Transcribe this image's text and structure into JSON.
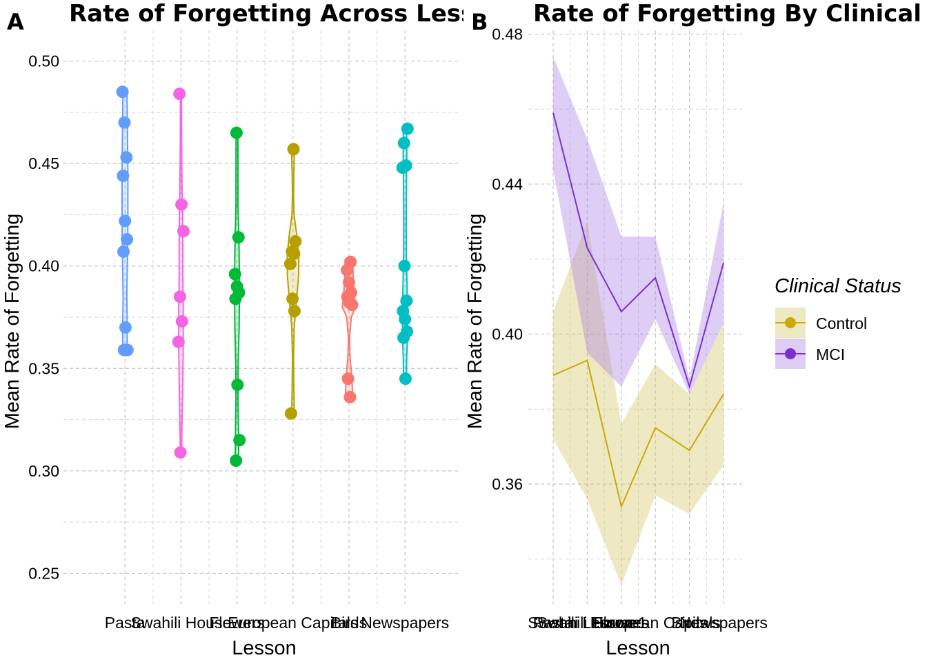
{
  "colors": {
    "Pasta": "#619CFF",
    "Swahili House": "#F564E3",
    "Flowers": "#00BA38",
    "European Capitals": "#B79F00",
    "Birds": "#F8766D",
    "Newspapers": "#00BFC4",
    "Control": "#C9A90A",
    "MCI": "#7B2FD0"
  },
  "chart_data": [
    {
      "type": "violin",
      "panel_label": "A",
      "title": "Rate of Forgetting Across Lesso",
      "xlabel": "Lesson",
      "ylabel": "Mean Rate of Forgetting",
      "ylim": [
        0.235,
        0.515
      ],
      "yticks": [
        0.25,
        0.3,
        0.35,
        0.4,
        0.45,
        0.5
      ],
      "ytick_labels": [
        "0.25",
        "0.30",
        "0.35",
        "0.40",
        "0.45",
        "0.50"
      ],
      "categories": [
        "Pasta",
        "Swahili House",
        "Flowers",
        "European Capitals",
        "Birds",
        "Newspapers"
      ],
      "tick_labels": [
        "Pasta",
        "Swahili House",
        "Flowers",
        "European Capitals",
        "Birds",
        "Newspapers"
      ],
      "grid": true,
      "series": [
        {
          "category": "Pasta",
          "points": [
            0.485,
            0.47,
            0.453,
            0.444,
            0.422,
            0.413,
            0.407,
            0.37,
            0.359,
            0.359
          ],
          "density": [
            [
              0.358,
              0.035
            ],
            [
              0.368,
              0.042
            ],
            [
              0.385,
              0.033
            ],
            [
              0.4,
              0.042
            ],
            [
              0.415,
              0.05
            ],
            [
              0.43,
              0.052
            ],
            [
              0.445,
              0.052
            ],
            [
              0.46,
              0.046
            ],
            [
              0.472,
              0.042
            ],
            [
              0.486,
              0.035
            ]
          ]
        },
        {
          "category": "Swahili House",
          "points": [
            0.484,
            0.43,
            0.417,
            0.385,
            0.373,
            0.363,
            0.309
          ],
          "density": [
            [
              0.308,
              0.012
            ],
            [
              0.32,
              0.016
            ],
            [
              0.34,
              0.03
            ],
            [
              0.36,
              0.04
            ],
            [
              0.38,
              0.04
            ],
            [
              0.395,
              0.032
            ],
            [
              0.41,
              0.032
            ],
            [
              0.425,
              0.028
            ],
            [
              0.44,
              0.018
            ],
            [
              0.46,
              0.012
            ],
            [
              0.475,
              0.01
            ],
            [
              0.485,
              0.01
            ]
          ]
        },
        {
          "category": "Flowers",
          "points": [
            0.465,
            0.414,
            0.396,
            0.39,
            0.387,
            0.384,
            0.342,
            0.315,
            0.305
          ],
          "density": [
            [
              0.305,
              0.03
            ],
            [
              0.318,
              0.028
            ],
            [
              0.335,
              0.018
            ],
            [
              0.35,
              0.02
            ],
            [
              0.37,
              0.038
            ],
            [
              0.39,
              0.046
            ],
            [
              0.41,
              0.036
            ],
            [
              0.43,
              0.018
            ],
            [
              0.45,
              0.018
            ],
            [
              0.465,
              0.016
            ]
          ]
        },
        {
          "category": "European Capitals",
          "points": [
            0.457,
            0.412,
            0.407,
            0.406,
            0.401,
            0.384,
            0.378,
            0.328
          ],
          "density": [
            [
              0.328,
              0.024
            ],
            [
              0.34,
              0.015
            ],
            [
              0.355,
              0.01
            ],
            [
              0.37,
              0.022
            ],
            [
              0.385,
              0.068
            ],
            [
              0.395,
              0.1
            ],
            [
              0.405,
              0.104
            ],
            [
              0.415,
              0.068
            ],
            [
              0.425,
              0.018
            ],
            [
              0.435,
              0.01
            ],
            [
              0.445,
              0.015
            ],
            [
              0.457,
              0.026
            ]
          ]
        },
        {
          "category": "Birds",
          "points": [
            0.402,
            0.398,
            0.392,
            0.387,
            0.385,
            0.382,
            0.381,
            0.345,
            0.336
          ],
          "density": [
            [
              0.336,
              0.06
            ],
            [
              0.34,
              0.06
            ],
            [
              0.346,
              0.05
            ],
            [
              0.355,
              0.02
            ],
            [
              0.365,
              0.01
            ],
            [
              0.375,
              0.04
            ],
            [
              0.38,
              0.12
            ],
            [
              0.385,
              0.1
            ],
            [
              0.392,
              0.08
            ],
            [
              0.398,
              0.07
            ],
            [
              0.403,
              0.07
            ]
          ]
        },
        {
          "category": "Newspapers",
          "points": [
            0.467,
            0.46,
            0.449,
            0.448,
            0.4,
            0.383,
            0.378,
            0.374,
            0.368,
            0.365,
            0.345
          ],
          "density": [
            [
              0.345,
              0.026
            ],
            [
              0.355,
              0.03
            ],
            [
              0.365,
              0.044
            ],
            [
              0.378,
              0.046
            ],
            [
              0.39,
              0.036
            ],
            [
              0.405,
              0.024
            ],
            [
              0.42,
              0.022
            ],
            [
              0.44,
              0.026
            ],
            [
              0.455,
              0.032
            ],
            [
              0.468,
              0.03
            ]
          ]
        }
      ]
    },
    {
      "type": "line",
      "panel_label": "B",
      "title": "Rate of Forgetting By Clinical St",
      "xlabel": "Lesson",
      "ylabel": "Mean Rate of Forgetting",
      "ylim": [
        0.328,
        0.481
      ],
      "yticks": [
        0.36,
        0.4,
        0.44,
        0.48
      ],
      "ytick_labels": [
        "0.36",
        "0.40",
        "0.44",
        "0.48"
      ],
      "yminor": [
        0.34,
        0.38,
        0.42,
        0.46
      ],
      "x": [
        1,
        2,
        3,
        4,
        5,
        6
      ],
      "tick_labels": [
        "Pasta",
        "Swahili House",
        "Flowers",
        "European Capitals",
        "Birds",
        "Newspapers"
      ],
      "tick_overlay_labels": [
        "Swahili Lesson 1"
      ],
      "grid": true,
      "legend": {
        "title": "Clinical Status",
        "position": "right"
      },
      "series": [
        {
          "name": "Control",
          "values": [
            0.389,
            0.393,
            0.354,
            0.375,
            0.369,
            0.384
          ],
          "lower": [
            0.372,
            0.356,
            0.333,
            0.357,
            0.352,
            0.365
          ],
          "upper": [
            0.406,
            0.43,
            0.376,
            0.392,
            0.384,
            0.403
          ]
        },
        {
          "name": "MCI",
          "values": [
            0.459,
            0.423,
            0.406,
            0.415,
            0.386,
            0.419
          ],
          "lower": [
            0.444,
            0.395,
            0.386,
            0.404,
            0.384,
            0.403
          ],
          "upper": [
            0.474,
            0.452,
            0.426,
            0.426,
            0.388,
            0.435
          ]
        }
      ]
    }
  ]
}
